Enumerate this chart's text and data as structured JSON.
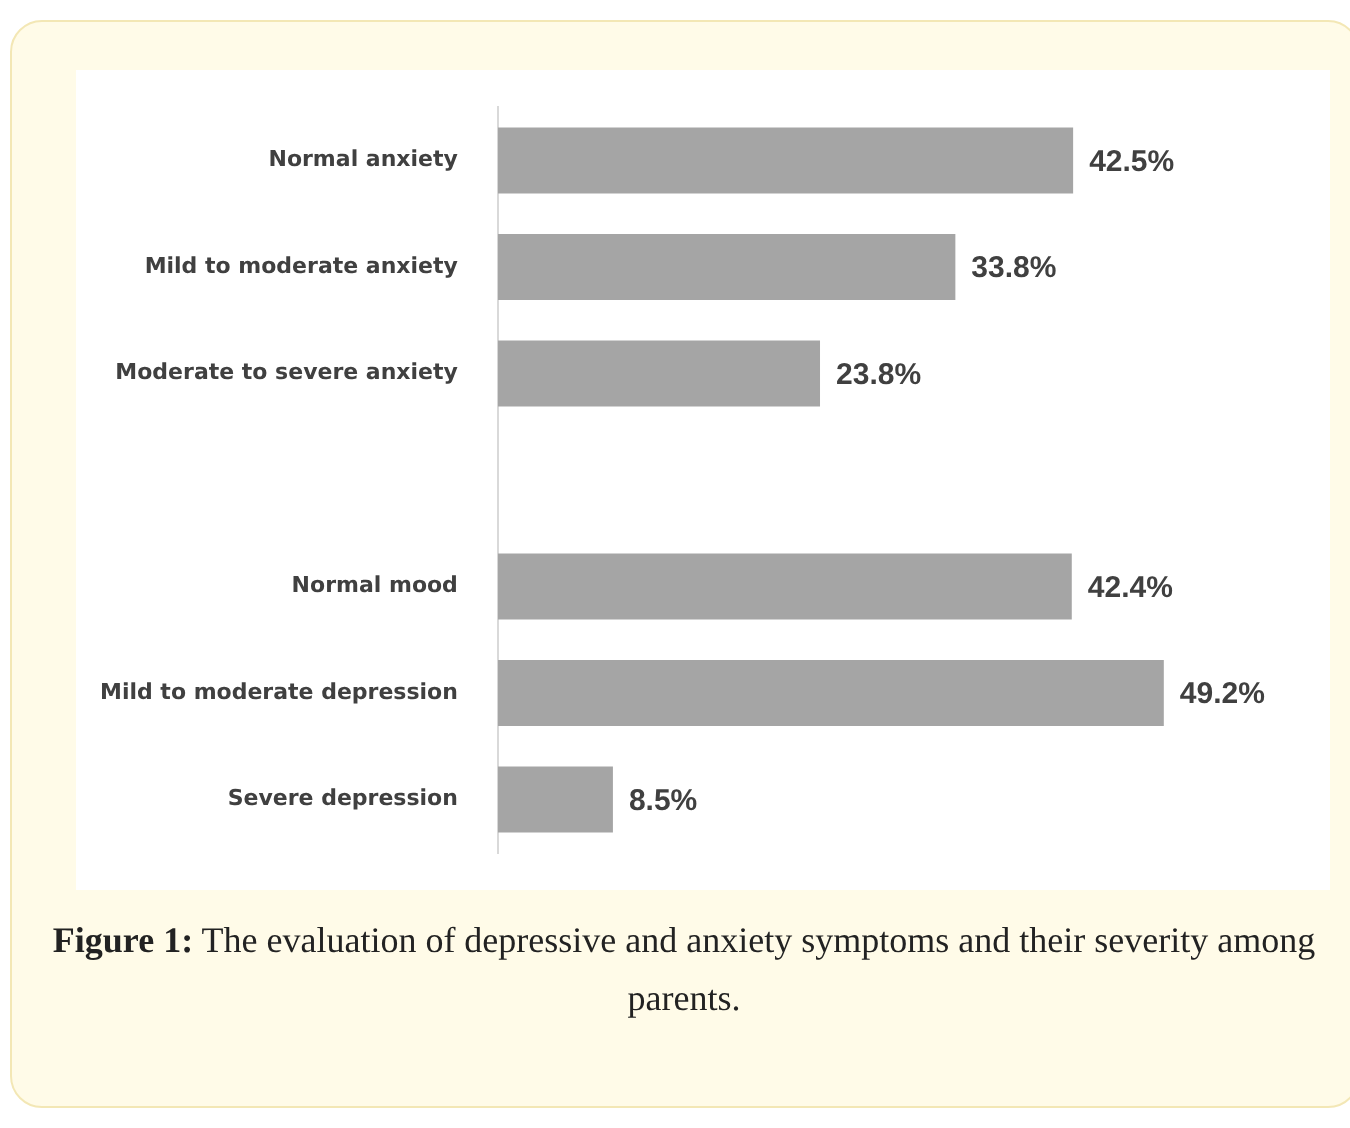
{
  "chart_data": {
    "type": "bar",
    "orientation": "horizontal",
    "categories": [
      "Normal anxiety",
      "Mild to moderate anxiety",
      "Moderate to severe anxiety",
      null,
      "Normal mood",
      "Mild to moderate depression",
      "Severe depression"
    ],
    "values": [
      42.5,
      33.8,
      23.8,
      null,
      42.4,
      49.2,
      8.5
    ],
    "value_labels": [
      "42.5%",
      "33.8%",
      "23.8%",
      null,
      "42.4%",
      "49.2%",
      "8.5%"
    ],
    "color": "#a5a5a5",
    "tick_labels": "y",
    "legend": false,
    "annotations": [
      "Figure 1: The evaluation of depressive and anxiety symptoms and their severity among parents."
    ]
  }
}
